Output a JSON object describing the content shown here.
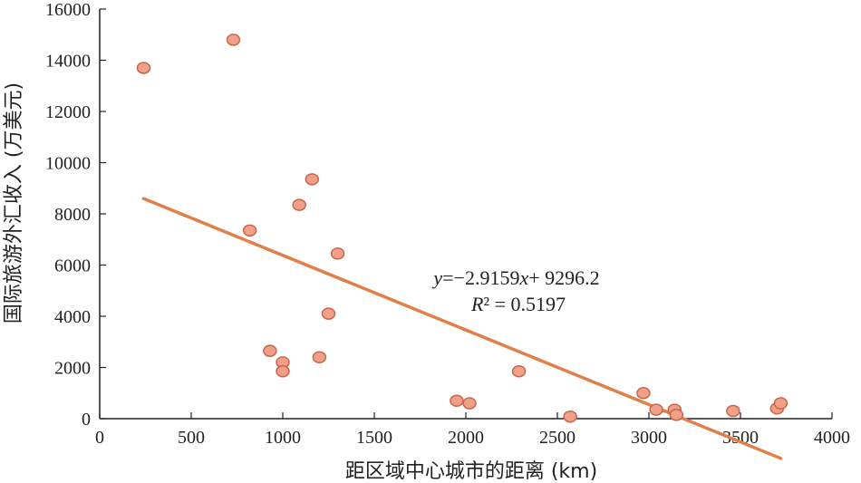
{
  "chart_data": {
    "type": "scatter",
    "xlabel": "距区域中心城市的距离 (km)",
    "ylabel": "国际旅游外汇收入 (万美元)",
    "xlim": [
      0,
      4000
    ],
    "ylim": [
      0,
      16000
    ],
    "x_ticks": [
      0,
      500,
      1000,
      1500,
      2000,
      2500,
      3000,
      3500,
      4000
    ],
    "y_ticks": [
      0,
      2000,
      4000,
      6000,
      8000,
      10000,
      12000,
      14000,
      16000
    ],
    "grid": false,
    "legend": "none",
    "marker_fill": "#f0a088",
    "marker_stroke": "#c8664a",
    "trendline_color": "#e07f48",
    "points": [
      {
        "x": 240,
        "y": 13700
      },
      {
        "x": 730,
        "y": 14800
      },
      {
        "x": 820,
        "y": 7350
      },
      {
        "x": 930,
        "y": 2650
      },
      {
        "x": 1000,
        "y": 2200
      },
      {
        "x": 1000,
        "y": 1850
      },
      {
        "x": 1090,
        "y": 8350
      },
      {
        "x": 1160,
        "y": 9350
      },
      {
        "x": 1200,
        "y": 2400
      },
      {
        "x": 1250,
        "y": 4100
      },
      {
        "x": 1300,
        "y": 6450
      },
      {
        "x": 1950,
        "y": 700
      },
      {
        "x": 2020,
        "y": 600
      },
      {
        "x": 2290,
        "y": 1850
      },
      {
        "x": 2570,
        "y": 80
      },
      {
        "x": 2970,
        "y": 1000
      },
      {
        "x": 3040,
        "y": 350
      },
      {
        "x": 3140,
        "y": 350
      },
      {
        "x": 3150,
        "y": 150
      },
      {
        "x": 3460,
        "y": 300
      },
      {
        "x": 3700,
        "y": 400
      },
      {
        "x": 3720,
        "y": 600
      }
    ],
    "trendline": {
      "slope": -2.9159,
      "intercept": 9296.2,
      "x_range": [
        240,
        3720
      ],
      "equation": "y=−2.9159x+ 9296.2",
      "r_squared": "R² = 0.5197"
    }
  }
}
